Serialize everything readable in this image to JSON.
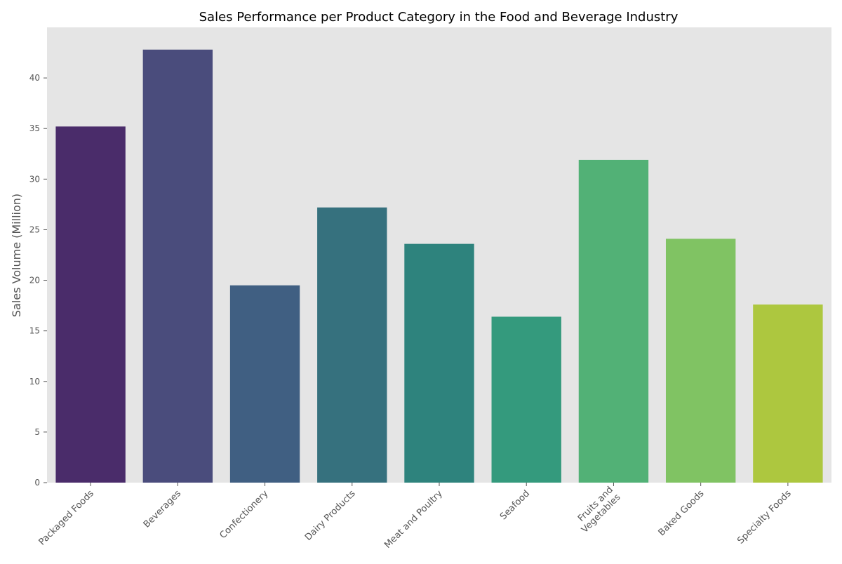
{
  "chart_data": {
    "type": "bar",
    "title": "Sales Performance per Product Category in the Food and Beverage Industry",
    "xlabel": "",
    "ylabel": "Sales Volume (Million)",
    "categories": [
      "Packaged Foods",
      "Beverages",
      "Confectionery",
      "Dairy Products",
      "Meat and Poultry",
      "Seafood",
      "Fruits and\nVegetables",
      "Baked Goods",
      "Specialty Foods"
    ],
    "values": [
      35.2,
      42.8,
      19.5,
      27.2,
      23.6,
      16.4,
      31.9,
      24.1,
      17.6
    ],
    "colors": [
      "#4a2c6a",
      "#4a4c7c",
      "#405f82",
      "#36717e",
      "#2e837d",
      "#349a7d",
      "#52b176",
      "#80c363",
      "#adc73f"
    ],
    "ylim": [
      0,
      45
    ],
    "yticks": [
      0,
      5,
      10,
      15,
      20,
      25,
      30,
      35,
      40
    ],
    "grid": false,
    "legend": "none",
    "plot_background": "#e5e5e5"
  }
}
